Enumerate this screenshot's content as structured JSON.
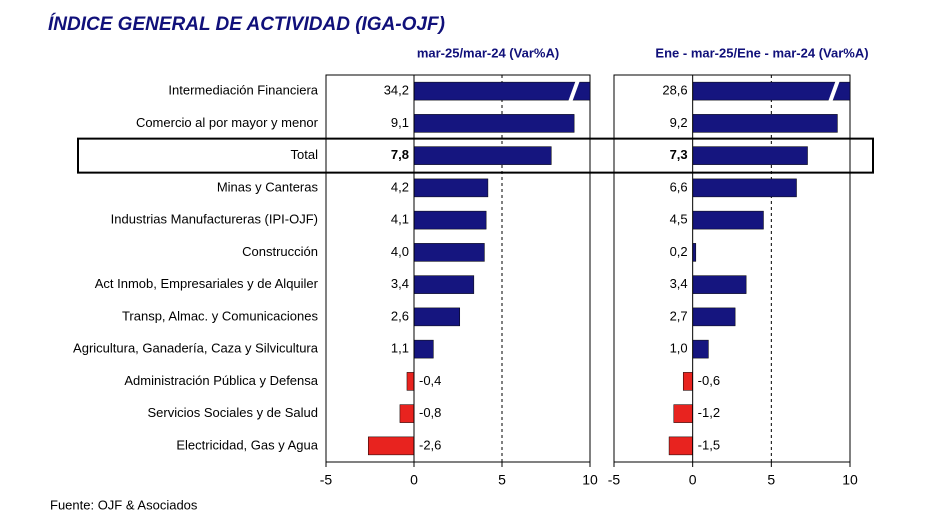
{
  "chart_data": {
    "type": "bar",
    "orientation": "horizontal",
    "title": "ÍNDICE GENERAL DE ACTIVIDAD (IGA-OJF)",
    "categories": [
      "Intermediación Financiera",
      "Comercio al por mayor y menor",
      "Total",
      "Minas y Canteras",
      "Industrias Manufactureras (IPI-OJF)",
      "Construcción",
      "Act Inmob, Empresariales y de Alquiler",
      "Transp, Almac. y Comunicaciones",
      "Agricultura, Ganadería, Caza y Silvicultura",
      "Administración Pública y Defensa",
      "Servicios Sociales y de Salud",
      "Electricidad, Gas y Agua"
    ],
    "series": [
      {
        "name": "mar-25/mar-24  (Var%A)",
        "values": [
          34.2,
          9.1,
          7.8,
          4.2,
          4.1,
          4.0,
          3.4,
          2.6,
          1.1,
          -0.4,
          -0.8,
          -2.6
        ],
        "value_labels": [
          "34,2",
          "9,1",
          "7,8",
          "4,2",
          "4,1",
          "4,0",
          "3,4",
          "2,6",
          "1,1",
          "-0,4",
          "-0,8",
          "-2,6"
        ]
      },
      {
        "name": "Ene - mar-25/Ene - mar-24  (Var%A)",
        "values": [
          28.6,
          9.2,
          7.3,
          6.6,
          4.5,
          0.2,
          3.4,
          2.7,
          1.0,
          -0.6,
          -1.2,
          -1.5
        ],
        "value_labels": [
          "28,6",
          "9,2",
          "7,3",
          "6,6",
          "4,5",
          "0,2",
          "3,4",
          "2,7",
          "1,0",
          "-0,6",
          "-1,2",
          "-1,5"
        ]
      }
    ],
    "positive_color": "#15157f",
    "negative_color": "#e8231f",
    "xlim": [
      -5,
      10
    ],
    "xticks": [
      -5,
      0,
      5,
      10
    ],
    "reference_lines": [
      5
    ],
    "highlight": "Total",
    "source": "Fuente: OJF & Asociados"
  }
}
